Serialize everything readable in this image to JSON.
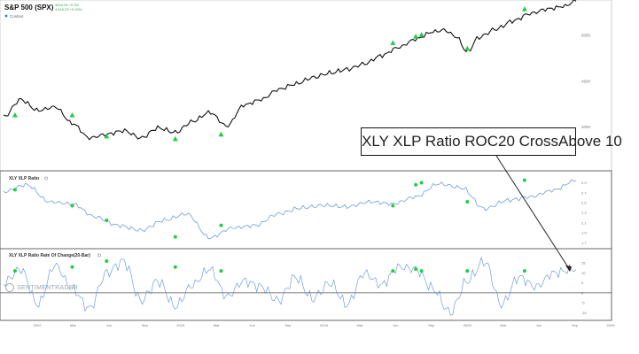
{
  "header": {
    "symbol_title": "S&P 500 (SPX)",
    "tiny_line_1": "4516.25 +0.3%",
    "tiny_line_2": "4,516.25 +0.30%",
    "legend_label": "Context"
  },
  "annotation": {
    "text": "XLY XLP Ratio ROC20 CrossAbove 10"
  },
  "watermark": {
    "text": "SENTIMENTRADER"
  },
  "colors": {
    "price": "#111111",
    "ratio": "#5b8fd6",
    "signal": "#22cc44",
    "axis": "#9a9a9a",
    "annotation_line": "#222222"
  },
  "chart_data": [
    {
      "panel": "price",
      "type": "line",
      "title": "S&P 500 (SPX)",
      "y_tick_labels": [
        "5000",
        "4500",
        "4000"
      ],
      "y_ticks": [
        5000,
        4500,
        4000
      ],
      "ylim": [
        3550,
        5330
      ],
      "x": [
        0,
        0.03,
        0.06,
        0.09,
        0.12,
        0.15,
        0.18,
        0.21,
        0.24,
        0.27,
        0.3,
        0.33,
        0.36,
        0.39,
        0.42,
        0.45,
        0.48,
        0.51,
        0.54,
        0.57,
        0.6,
        0.63,
        0.66,
        0.69,
        0.72,
        0.75,
        0.77,
        0.79,
        0.81,
        0.83,
        0.86,
        0.89,
        0.92,
        0.95,
        0.98,
        1.0
      ],
      "values": [
        4110,
        4300,
        4180,
        4220,
        4040,
        3880,
        3920,
        3960,
        3880,
        3990,
        3940,
        4060,
        4160,
        4010,
        4240,
        4300,
        4410,
        4470,
        4540,
        4590,
        4630,
        4690,
        4780,
        4870,
        4960,
        5040,
        5060,
        4990,
        4820,
        4980,
        5070,
        5160,
        5240,
        5290,
        5320,
        5380
      ],
      "signals_x": [
        0.02,
        0.12,
        0.18,
        0.3,
        0.38,
        0.68,
        0.72,
        0.73,
        0.81,
        0.91
      ],
      "signals_y": [
        4130,
        4130,
        3900,
        3870,
        3920,
        4920,
        4990,
        5010,
        4860,
        5290
      ]
    },
    {
      "panel": "ratio",
      "type": "line",
      "title": "XLY XLP Ratio",
      "y_tick_labels": [
        "2.9",
        "2.7",
        "2.5",
        "2.3",
        "2.1",
        "1.9",
        "1.7"
      ],
      "y_ticks": [
        2.9,
        2.7,
        2.5,
        2.3,
        2.1,
        1.9,
        1.7
      ],
      "ylim": [
        1.62,
        3.05
      ],
      "x": [
        0,
        0.04,
        0.08,
        0.12,
        0.16,
        0.2,
        0.24,
        0.28,
        0.32,
        0.36,
        0.4,
        0.44,
        0.48,
        0.52,
        0.56,
        0.6,
        0.64,
        0.68,
        0.72,
        0.76,
        0.8,
        0.84,
        0.88,
        0.92,
        0.96,
        1.0
      ],
      "values": [
        2.72,
        2.86,
        2.52,
        2.48,
        2.22,
        2.05,
        1.95,
        2.15,
        2.28,
        1.8,
        2.0,
        2.05,
        2.28,
        2.4,
        2.45,
        2.42,
        2.52,
        2.48,
        2.62,
        2.88,
        2.8,
        2.38,
        2.55,
        2.62,
        2.75,
        2.95
      ],
      "signals_x": [
        0.02,
        0.12,
        0.18,
        0.3,
        0.38,
        0.68,
        0.72,
        0.73,
        0.81,
        0.91
      ],
      "signals_y": [
        2.76,
        2.44,
        2.15,
        1.82,
        2.05,
        2.44,
        2.86,
        2.9,
        2.52,
        2.95
      ]
    },
    {
      "panel": "roc",
      "type": "line",
      "title": "XLY XLP Ratio Rate Of Change(20-Bar)",
      "y_tick_labels": [
        "15",
        "10",
        "5",
        "0",
        "-5",
        "-10"
      ],
      "y_ticks": [
        15,
        10,
        5,
        0,
        -5,
        -10
      ],
      "ylim": [
        -13,
        20
      ],
      "threshold": 0,
      "x": [
        0,
        0.03,
        0.06,
        0.09,
        0.12,
        0.15,
        0.18,
        0.21,
        0.24,
        0.27,
        0.3,
        0.33,
        0.36,
        0.39,
        0.42,
        0.45,
        0.48,
        0.51,
        0.54,
        0.57,
        0.6,
        0.63,
        0.66,
        0.69,
        0.72,
        0.75,
        0.78,
        0.81,
        0.84,
        0.87,
        0.9,
        0.93,
        0.96,
        1.0
      ],
      "values": [
        5,
        12,
        -6,
        14,
        2,
        -8,
        10,
        16,
        -4,
        6,
        -7,
        4,
        12,
        -2,
        6,
        3,
        -4,
        8,
        -3,
        5,
        -6,
        10,
        4,
        13,
        12,
        2,
        -10,
        6,
        16,
        -6,
        8,
        3,
        10,
        12
      ],
      "signals_x": [
        0.02,
        0.12,
        0.18,
        0.3,
        0.38,
        0.68,
        0.72,
        0.73,
        0.81,
        0.91
      ],
      "signals_y": [
        11,
        13,
        16,
        13,
        11,
        11,
        12,
        11,
        11,
        11
      ]
    }
  ],
  "x_axis": {
    "labels": [
      "2022",
      "Mar",
      "Jun",
      "Sep",
      "2023",
      "Mar",
      "Jun",
      "Sep",
      "2024",
      "Mar",
      "Jun",
      "Sep",
      "2025",
      "Mar",
      "Jun",
      "Sep",
      "2026"
    ]
  }
}
